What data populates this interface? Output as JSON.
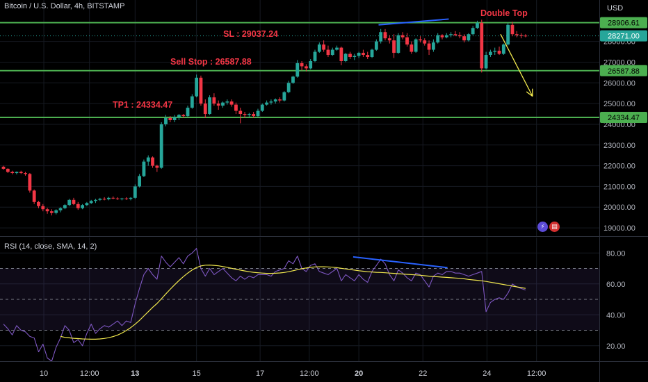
{
  "header": {
    "title": "Bitcoin / U.S. Dollar, 4h, BITSTAMP",
    "currency": "USD",
    "rsi_title": "RSI (14, close, SMA, 14, 2)"
  },
  "colors": {
    "background": "#000000",
    "up": "#26a69a",
    "down": "#f23645",
    "level_line": "#4caf50",
    "trendline": "#2962ff",
    "arrow": "#f2e94e",
    "rsi_line": "#7e57c2",
    "rsi_ma": "#f2e94e"
  },
  "annotations": {
    "double_top": "Double Top",
    "sl": "SL : 29037.24",
    "sell_stop": "Sell Stop : 26587.88",
    "tp1": "TP1 : 24334.47"
  },
  "icons": [
    "lightning-icon",
    "us-flag-icon"
  ],
  "chart_data": [
    {
      "type": "candlestick",
      "title": "Bitcoin / U.S. Dollar, 4h, BITSTAMP",
      "ylabel": "USD",
      "ylim": [
        18600,
        30000
      ],
      "y_ticks": [
        19000,
        20000,
        21000,
        22000,
        23000,
        24000,
        25000,
        26000,
        27000,
        28000
      ],
      "y_tick_labels": [
        "19000.00",
        "20000.00",
        "21000.00",
        "22000.00",
        "23000.00",
        "24000.00",
        "25000.00",
        "26000.00",
        "27000.00",
        "28000.00"
      ],
      "x_ticks": [
        {
          "label": "10",
          "bold": false,
          "index": 9.2
        },
        {
          "label": "12:00",
          "bold": false,
          "index": 19.6
        },
        {
          "label": "13",
          "bold": true,
          "index": 30
        },
        {
          "label": "15",
          "bold": false,
          "index": 44
        },
        {
          "label": "17",
          "bold": false,
          "index": 58.5
        },
        {
          "label": "12:00",
          "bold": false,
          "index": 69.7
        },
        {
          "label": "20",
          "bold": true,
          "index": 81
        },
        {
          "label": "22",
          "bold": false,
          "index": 95.6
        },
        {
          "label": "24",
          "bold": false,
          "index": 110.2
        },
        {
          "label": "12:00",
          "bold": false,
          "index": 121.5
        }
      ],
      "levels": [
        {
          "value": 28906.61,
          "label": "28906.61"
        },
        {
          "value": 26587.88,
          "label": "26587.88"
        },
        {
          "value": 24334.47,
          "label": "24334.47"
        }
      ],
      "last_price": {
        "value": 28271.0,
        "label": "28271.00"
      },
      "candles": [
        [
          21950,
          22000,
          21800,
          21850
        ],
        [
          21850,
          21880,
          21650,
          21700
        ],
        [
          21700,
          21760,
          21580,
          21650
        ],
        [
          21650,
          21720,
          21580,
          21700
        ],
        [
          21700,
          21760,
          21600,
          21650
        ],
        [
          21650,
          21700,
          21520,
          21600
        ],
        [
          21600,
          21650,
          20700,
          20800
        ],
        [
          20800,
          20850,
          20150,
          20250
        ],
        [
          20250,
          20300,
          19950,
          20050
        ],
        [
          20050,
          20150,
          19800,
          19900
        ],
        [
          19900,
          19970,
          19680,
          19800
        ],
        [
          19800,
          19900,
          19600,
          19720
        ],
        [
          19720,
          19900,
          19650,
          19850
        ],
        [
          19850,
          20000,
          19750,
          19950
        ],
        [
          19950,
          20150,
          19900,
          20100
        ],
        [
          20100,
          20400,
          20050,
          20350
        ],
        [
          20350,
          20450,
          20100,
          20150
        ],
        [
          20150,
          20250,
          19870,
          19950
        ],
        [
          19950,
          20150,
          19900,
          20100
        ],
        [
          20100,
          20250,
          20050,
          20200
        ],
        [
          20200,
          20350,
          20150,
          20300
        ],
        [
          20300,
          20400,
          20200,
          20350
        ],
        [
          20350,
          20450,
          20300,
          20400
        ],
        [
          20400,
          20480,
          20330,
          20380
        ],
        [
          20380,
          20500,
          20330,
          20450
        ],
        [
          20450,
          20520,
          20380,
          20420
        ],
        [
          20420,
          20480,
          20350,
          20400
        ],
        [
          20400,
          20450,
          20330,
          20420
        ],
        [
          20420,
          20480,
          20350,
          20400
        ],
        [
          20400,
          20480,
          20330,
          20450
        ],
        [
          20450,
          21100,
          20400,
          21000
        ],
        [
          21000,
          21600,
          20950,
          21500
        ],
        [
          21500,
          22300,
          21450,
          22200
        ],
        [
          22200,
          22500,
          22000,
          22400
        ],
        [
          22400,
          22450,
          21900,
          22000
        ],
        [
          22000,
          22050,
          21700,
          21900
        ],
        [
          21900,
          24100,
          21850,
          24000
        ],
        [
          24000,
          24450,
          23900,
          24300
        ],
        [
          24300,
          24400,
          24100,
          24200
        ],
        [
          24200,
          24450,
          24100,
          24350
        ],
        [
          24350,
          24500,
          24200,
          24450
        ],
        [
          24450,
          24500,
          24300,
          24400
        ],
        [
          24400,
          24900,
          24350,
          24800
        ],
        [
          24800,
          25450,
          24750,
          25350
        ],
        [
          25350,
          26400,
          25300,
          26250
        ],
        [
          26250,
          26350,
          24900,
          25000
        ],
        [
          25000,
          25200,
          24300,
          24500
        ],
        [
          24500,
          25400,
          24450,
          25300
        ],
        [
          25300,
          25500,
          24900,
          25000
        ],
        [
          25000,
          25150,
          24700,
          24900
        ],
        [
          24900,
          25100,
          24800,
          25050
        ],
        [
          25050,
          25200,
          24950,
          25100
        ],
        [
          25100,
          25200,
          24850,
          24950
        ],
        [
          24950,
          25050,
          24500,
          24650
        ],
        [
          24650,
          24800,
          24050,
          24500
        ],
        [
          24500,
          24600,
          24300,
          24450
        ],
        [
          24450,
          24550,
          24350,
          24500
        ],
        [
          24500,
          24600,
          24300,
          24400
        ],
        [
          24400,
          24750,
          24350,
          24650
        ],
        [
          24650,
          25000,
          24600,
          24950
        ],
        [
          24950,
          25150,
          24900,
          25050
        ],
        [
          25050,
          25200,
          24950,
          25100
        ],
        [
          25100,
          25250,
          25000,
          25200
        ],
        [
          25200,
          25300,
          25050,
          25150
        ],
        [
          25150,
          25600,
          25100,
          25550
        ],
        [
          25550,
          26100,
          25500,
          26000
        ],
        [
          26000,
          26350,
          25950,
          26300
        ],
        [
          26300,
          27100,
          26250,
          26950
        ],
        [
          26950,
          27050,
          26600,
          26800
        ],
        [
          26800,
          26900,
          26550,
          26700
        ],
        [
          26700,
          27150,
          26650,
          27050
        ],
        [
          27050,
          27600,
          27000,
          27500
        ],
        [
          27500,
          27950,
          27450,
          27850
        ],
        [
          27850,
          28050,
          27500,
          27600
        ],
        [
          27600,
          27800,
          27250,
          27350
        ],
        [
          27350,
          27700,
          27300,
          27600
        ],
        [
          27600,
          27800,
          27550,
          27700
        ],
        [
          27700,
          27750,
          26850,
          27050
        ],
        [
          27050,
          27450,
          27000,
          27400
        ],
        [
          27400,
          27500,
          27150,
          27250
        ],
        [
          27250,
          27400,
          27100,
          27300
        ],
        [
          27300,
          27500,
          27200,
          27450
        ],
        [
          27450,
          27600,
          27250,
          27350
        ],
        [
          27350,
          27500,
          27150,
          27250
        ],
        [
          27250,
          27650,
          27200,
          27600
        ],
        [
          27600,
          28100,
          27550,
          28000
        ],
        [
          28000,
          28600,
          27900,
          28450
        ],
        [
          28450,
          28600,
          28050,
          28150
        ],
        [
          28150,
          28300,
          27900,
          28050
        ],
        [
          28050,
          28350,
          27200,
          27450
        ],
        [
          27450,
          28400,
          27400,
          28300
        ],
        [
          28300,
          28450,
          28100,
          28200
        ],
        [
          28200,
          28400,
          27750,
          27850
        ],
        [
          27850,
          28000,
          27400,
          27500
        ],
        [
          27500,
          28150,
          27450,
          28100
        ],
        [
          28100,
          28250,
          27950,
          28050
        ],
        [
          28050,
          28150,
          27800,
          27900
        ],
        [
          27900,
          28050,
          27350,
          27600
        ],
        [
          27600,
          28100,
          27500,
          27950
        ],
        [
          27950,
          28400,
          27900,
          28300
        ],
        [
          28300,
          28350,
          28100,
          28200
        ],
        [
          28200,
          28400,
          28150,
          28300
        ],
        [
          28300,
          28450,
          28200,
          28350
        ],
        [
          28350,
          28500,
          28250,
          28300
        ],
        [
          28300,
          28450,
          28150,
          28250
        ],
        [
          28250,
          28350,
          27950,
          28050
        ],
        [
          28050,
          28400,
          28000,
          28350
        ],
        [
          28350,
          28750,
          28300,
          28650
        ],
        [
          28650,
          29000,
          28600,
          28900
        ],
        [
          28900,
          29050,
          26500,
          26700
        ],
        [
          26700,
          27500,
          26650,
          27350
        ],
        [
          27350,
          27600,
          27250,
          27500
        ],
        [
          27500,
          27700,
          27350,
          27550
        ],
        [
          27550,
          27750,
          27350,
          27400
        ],
        [
          27400,
          27900,
          27350,
          27850
        ],
        [
          27850,
          28900,
          27800,
          28800
        ],
        [
          28800,
          28950,
          28250,
          28350
        ],
        [
          28350,
          28500,
          28200,
          28300
        ],
        [
          28300,
          28400,
          28150,
          28280
        ],
        [
          28280,
          28350,
          28200,
          28271
        ]
      ],
      "trendline": [
        [
          85.5,
          28800
        ],
        [
          101.5,
          29080
        ]
      ],
      "forecast_arrow": [
        [
          113.3,
          28350
        ],
        [
          120.6,
          25350
        ]
      ]
    },
    {
      "type": "line",
      "title": "RSI (14, close, SMA, 14, 2)",
      "ylim": [
        10,
        90
      ],
      "y_ticks": [
        20,
        40,
        60,
        80
      ],
      "y_tick_labels": [
        "20.00",
        "40.00",
        "60.00",
        "80.00"
      ],
      "bands": {
        "upper": 70,
        "middle": 50,
        "lower": 30
      },
      "series": [
        {
          "values": [
            34,
            31,
            27,
            33,
            30,
            29,
            26,
            25,
            16,
            21,
            12,
            10,
            19,
            25,
            33,
            30,
            22,
            24,
            20,
            28,
            34,
            28,
            31,
            33,
            32,
            34,
            36,
            33,
            36,
            35,
            47,
            57,
            66,
            70,
            66,
            63,
            78,
            74,
            71,
            74,
            77,
            73,
            78,
            80,
            83,
            70,
            65,
            70,
            66,
            68,
            70,
            67,
            64,
            62,
            65,
            63,
            65,
            64,
            66,
            66,
            66,
            65,
            68,
            69,
            70,
            75,
            73,
            78,
            70,
            68,
            72,
            73,
            68,
            67,
            66,
            68,
            70,
            62,
            66,
            64,
            62,
            66,
            63,
            61,
            68,
            72,
            76,
            73,
            66,
            62,
            69,
            67,
            64,
            62,
            67,
            66,
            62,
            58,
            65,
            67,
            66,
            68,
            68,
            67,
            67,
            66,
            65,
            66,
            67,
            68,
            42,
            48,
            50,
            51,
            50,
            54,
            60,
            58,
            57,
            56
          ]
        },
        {
          "values": [
            null,
            null,
            null,
            null,
            null,
            null,
            null,
            null,
            null,
            null,
            null,
            null,
            null,
            26.0,
            25.4,
            25.1,
            24.8,
            24.6,
            24.4,
            24.3,
            24.2,
            24.2,
            24.4,
            24.7,
            25.2,
            25.9,
            26.9,
            28.2,
            29.8,
            31.7,
            33.9,
            36.4,
            39.2,
            42.0,
            44.8,
            47.3,
            50.4,
            53.5,
            56.5,
            59.4,
            62.2,
            64.7,
            67.0,
            69.0,
            70.6,
            71.6,
            72.1,
            72.2,
            72.0,
            71.7,
            71.2,
            70.7,
            70.1,
            69.5,
            68.9,
            68.4,
            67.9,
            67.5,
            67.2,
            67.0,
            66.8,
            66.8,
            66.9,
            67.1,
            67.4,
            67.9,
            68.5,
            69.2,
            69.8,
            70.3,
            70.7,
            71.0,
            71.1,
            71.1,
            71.0,
            70.8,
            70.5,
            70.1,
            69.7,
            69.3,
            68.9,
            68.5,
            68.2,
            67.9,
            67.7,
            67.5,
            67.4,
            67.2,
            67.0,
            66.8,
            66.6,
            66.4,
            66.2,
            66.0,
            65.8,
            65.6,
            65.3,
            65.0,
            64.8,
            64.6,
            64.4,
            64.2,
            64.0,
            63.8,
            63.6,
            63.3,
            62.9,
            62.6,
            62.3,
            62.0,
            61.6,
            61.1,
            60.6,
            60.1,
            59.6,
            59.1,
            58.6,
            58.1,
            57.6,
            57.1
          ]
        }
      ],
      "trendline": [
        [
          79.7,
          77.5
        ],
        [
          101.2,
          70.5
        ]
      ]
    }
  ]
}
